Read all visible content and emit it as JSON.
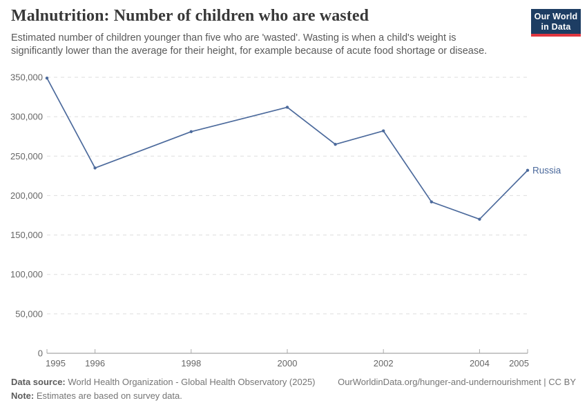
{
  "header": {
    "title": "Malnutrition: Number of children who are wasted",
    "subtitle": "Estimated number of children younger than five who are 'wasted'. Wasting is when a child's weight is significantly lower than the average for their height, for example because of acute food shortage or disease.",
    "logo": {
      "line1": "Our World",
      "line2": "in Data"
    }
  },
  "chart_data": {
    "type": "line",
    "title": "Malnutrition: Number of children who are wasted",
    "xlabel": "",
    "ylabel": "",
    "xlim": [
      1995,
      2005
    ],
    "ylim": [
      0,
      350000
    ],
    "xticks": [
      1995,
      1996,
      1998,
      2000,
      2002,
      2004,
      2005
    ],
    "yticks": [
      0,
      50000,
      100000,
      150000,
      200000,
      250000,
      300000,
      350000
    ],
    "grid": "horizontal-dashed",
    "legend_position": "end-of-line-label",
    "series": [
      {
        "name": "Russia",
        "color": "#4C6A9C",
        "x": [
          1995,
          1996,
          1998,
          2000,
          2001,
          2002,
          2003,
          2004,
          2005
        ],
        "values": [
          349000,
          235000,
          281000,
          312000,
          265000,
          282000,
          192000,
          170000,
          232000
        ]
      }
    ]
  },
  "footer": {
    "datasource_label": "Data source:",
    "datasource_text": " World Health Organization - Global Health Observatory (2025)",
    "link_text": "OurWorldinData.org/hunger-and-undernourishment | CC BY",
    "note_label": "Note:",
    "note_text": " Estimates are based on survey data."
  },
  "colors": {
    "accent_line": "#4C6A9C",
    "grid": "#dddddd",
    "axis": "#8f8f8f",
    "tick": "#aaaaaa",
    "axis_text": "#666666",
    "logo_bg": "#1d3d63",
    "logo_stripe": "#e0363f"
  }
}
